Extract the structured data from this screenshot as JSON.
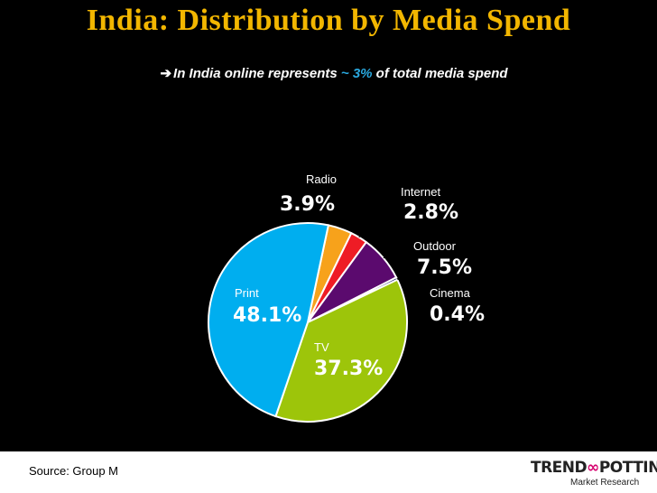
{
  "title": "India: Distribution by Media Spend",
  "subtitle": {
    "arrow": "➔",
    "prefix": "In India online  represents ",
    "highlight": "~ 3%",
    "suffix": " of total media spend"
  },
  "chart_data": {
    "type": "pie",
    "title": "India: Distribution by Media Spend",
    "slices": [
      {
        "label": "Radio",
        "value_text": "3.9%",
        "value": 3.9,
        "color": "#f7a21b"
      },
      {
        "label": "Internet",
        "value_text": "2.8%",
        "value": 2.8,
        "color": "#ee1c25"
      },
      {
        "label": "Outdoor",
        "value_text": "7.5%",
        "value": 7.5,
        "color": "#5b0a6e"
      },
      {
        "label": "Cinema",
        "value_text": "0.4%",
        "value": 0.4,
        "color": "#0a0a5e"
      },
      {
        "label": "TV",
        "value_text": "37.3%",
        "value": 37.3,
        "color": "#9dc50a"
      },
      {
        "label": "Print",
        "value_text": "48.1%",
        "value": 48.1,
        "color": "#00aeef"
      }
    ]
  },
  "footer": {
    "source": "Source: Group M",
    "logo_brand_a": "TREND",
    "logo_brand_loop": "∞",
    "logo_brand_b": "POTTING.",
    "logo_tag": "Market Research"
  }
}
